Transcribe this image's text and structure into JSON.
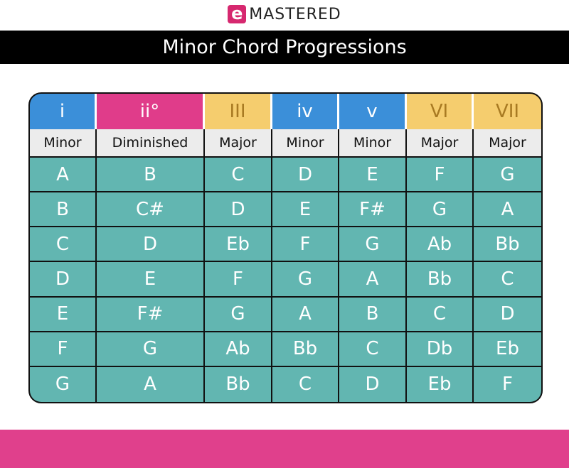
{
  "logo": {
    "mark": "e",
    "text": "MASTERED"
  },
  "title": "Minor Chord Progressions",
  "colors": {
    "blue": "#3b8fd9",
    "pink": "#e03c8a",
    "yellow": "#f5cd6e",
    "teal": "#62b6b1",
    "footer": "#e0408c"
  },
  "columns": [
    {
      "numeral": "i",
      "quality": "Minor",
      "color": "#3b8fd9"
    },
    {
      "numeral": "ii°",
      "quality": "Diminished",
      "color": "#e03c8a"
    },
    {
      "numeral": "III",
      "quality": "Major",
      "color": "#f5cd6e"
    },
    {
      "numeral": "iv",
      "quality": "Minor",
      "color": "#3b8fd9"
    },
    {
      "numeral": "v",
      "quality": "Minor",
      "color": "#3b8fd9"
    },
    {
      "numeral": "VI",
      "quality": "Major",
      "color": "#f5cd6e"
    },
    {
      "numeral": "VII",
      "quality": "Major",
      "color": "#f5cd6e"
    }
  ],
  "rows": [
    [
      "A",
      "B",
      "C",
      "D",
      "E",
      "F",
      "G"
    ],
    [
      "B",
      "C#",
      "D",
      "E",
      "F#",
      "G",
      "A"
    ],
    [
      "C",
      "D",
      "Eb",
      "F",
      "G",
      "Ab",
      "Bb"
    ],
    [
      "D",
      "E",
      "F",
      "G",
      "A",
      "Bb",
      "C"
    ],
    [
      "E",
      "F#",
      "G",
      "A",
      "B",
      "C",
      "D"
    ],
    [
      "F",
      "G",
      "Ab",
      "Bb",
      "C",
      "Db",
      "Eb"
    ],
    [
      "G",
      "A",
      "Bb",
      "C",
      "D",
      "Eb",
      "F"
    ]
  ]
}
